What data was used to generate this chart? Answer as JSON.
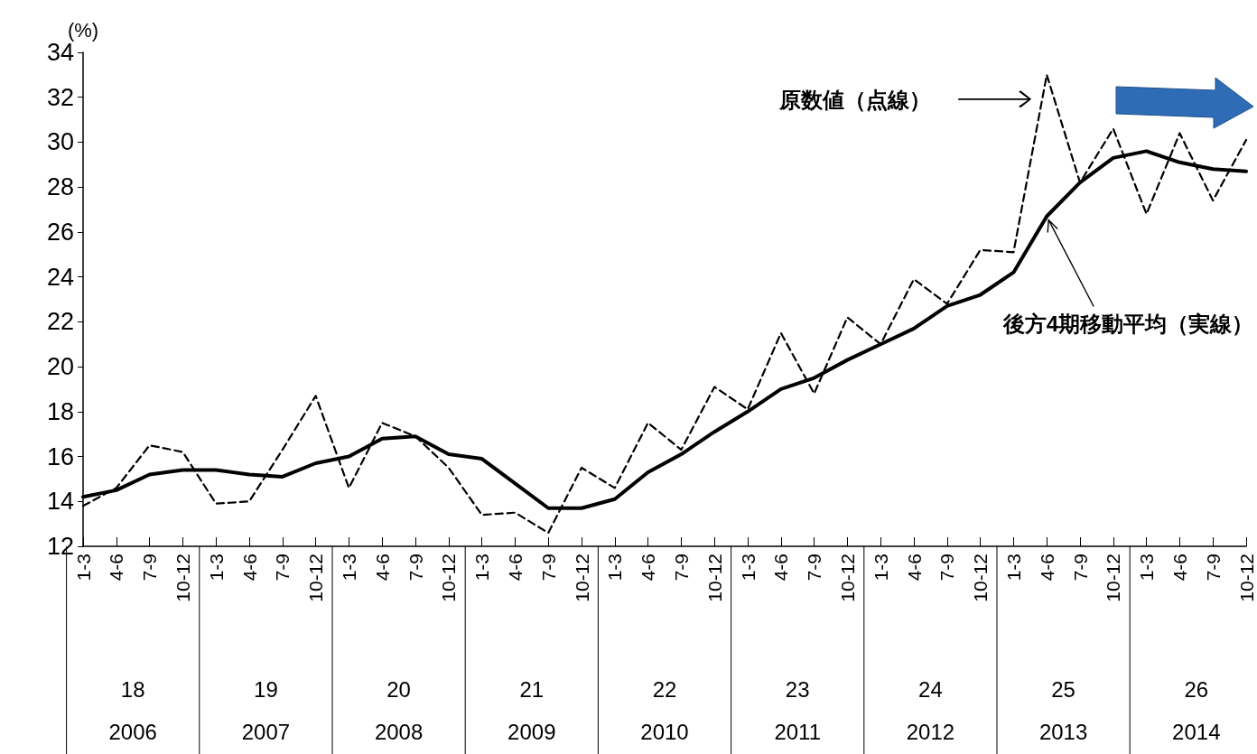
{
  "chart_data": {
    "type": "line",
    "ylabel": "(%)",
    "categories": [
      "1-3",
      "4-6",
      "7-9",
      "10-12",
      "1-3",
      "4-6",
      "7-9",
      "10-12",
      "1-3",
      "4-6",
      "7-9",
      "10-12",
      "1-3",
      "4-6",
      "7-9",
      "10-12",
      "1-3",
      "4-6",
      "7-9",
      "10-12",
      "1-3",
      "4-6",
      "7-9",
      "10-12",
      "1-3",
      "4-6",
      "7-9",
      "10-12",
      "1-3",
      "4-6",
      "7-9",
      "10-12",
      "1-3",
      "4-6",
      "7-9",
      "10-12"
    ],
    "series": [
      {
        "name": "原数値（点線）",
        "color": "#000000",
        "line_style": "dashed",
        "values": [
          13.8,
          14.6,
          16.5,
          16.2,
          13.9,
          14.0,
          16.3,
          18.7,
          14.6,
          17.5,
          16.9,
          15.5,
          13.4,
          13.5,
          12.6,
          15.5,
          14.6,
          17.5,
          16.3,
          19.1,
          18.1,
          21.5,
          18.8,
          22.2,
          21.0,
          23.9,
          22.8,
          25.2,
          25.1,
          33.0,
          28.2,
          30.6,
          26.8,
          30.4,
          27.4,
          30.1
        ]
      },
      {
        "name": "後方4期移動平均（実線）",
        "color": "#000000",
        "line_style": "solid",
        "values": [
          14.2,
          14.5,
          15.2,
          15.4,
          15.4,
          15.2,
          15.1,
          15.7,
          16.0,
          16.8,
          16.9,
          16.1,
          15.9,
          14.8,
          13.7,
          13.7,
          14.1,
          15.3,
          16.1,
          17.1,
          18.0,
          19.0,
          19.5,
          20.3,
          21.0,
          21.7,
          22.7,
          23.2,
          24.2,
          26.7,
          28.2,
          29.3,
          29.6,
          29.1,
          28.8,
          28.7
        ]
      }
    ],
    "ylim": [
      12,
      34
    ],
    "yticks": [
      12,
      14,
      16,
      18,
      20,
      22,
      24,
      26,
      28,
      30,
      32,
      34
    ],
    "grid": false,
    "marker": "none",
    "annotations": [
      "18",
      "2006",
      "19",
      "2007",
      "20",
      "2008",
      "21",
      "2009",
      "22",
      "2010",
      "23",
      "2011",
      "24",
      "2012",
      "25",
      "2013",
      "26",
      "2014"
    ]
  }
}
